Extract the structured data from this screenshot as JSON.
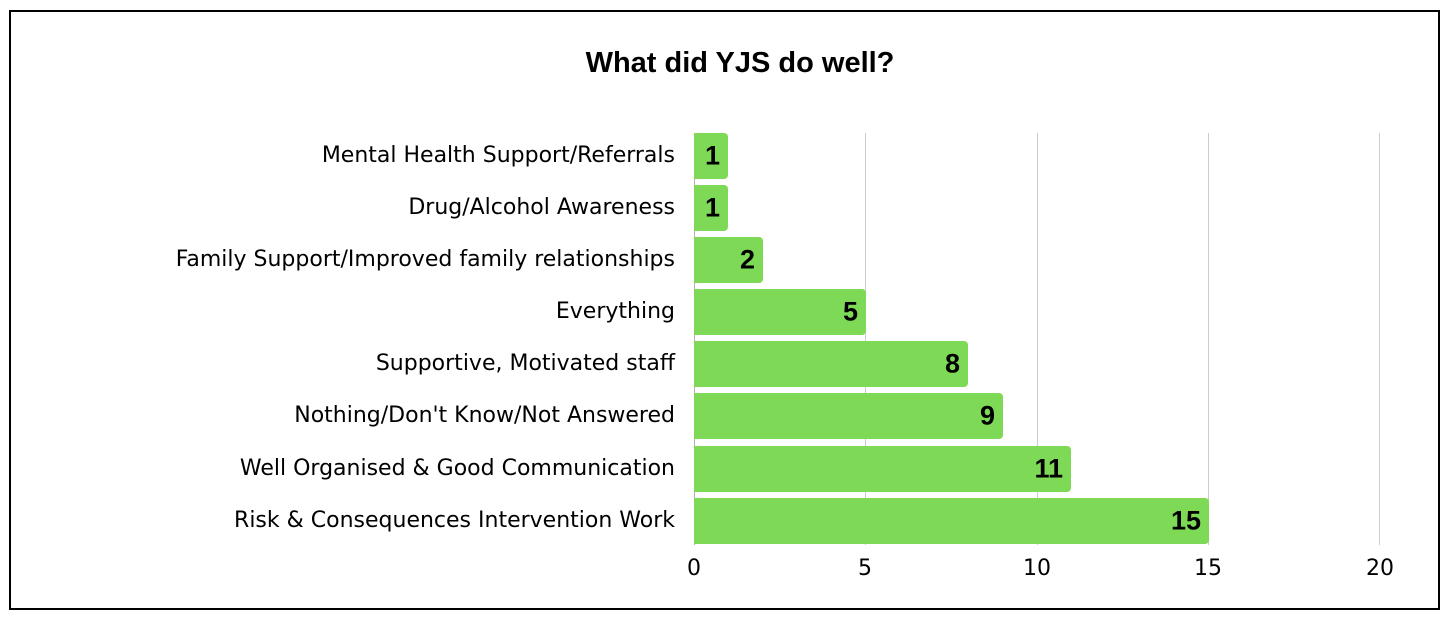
{
  "chart_data": {
    "type": "bar",
    "orientation": "horizontal",
    "title": "What did YJS do well?",
    "xlabel": "",
    "ylabel": "",
    "categories": [
      "Mental Health Support/Referrals",
      "Drug/Alcohol Awareness",
      "Family Support/Improved family relationships",
      "Everything",
      "Supportive, Motivated staff",
      "Nothing/Don't Know/Not Answered",
      "Well Organised & Good Communication",
      "Risk & Consequences Intervention Work"
    ],
    "values": [
      1,
      1,
      2,
      5,
      8,
      9,
      11,
      15
    ],
    "xlim": [
      0,
      20
    ],
    "xticks": [
      "0",
      "5",
      "10",
      "15",
      "20"
    ],
    "grid": "vertical",
    "legend": "none",
    "data_labels": true,
    "bar_color": "#7ed957"
  },
  "colors": {
    "bar": "#7ed957",
    "grid": "#cccccc",
    "text": "#000000",
    "border": "#000000"
  }
}
